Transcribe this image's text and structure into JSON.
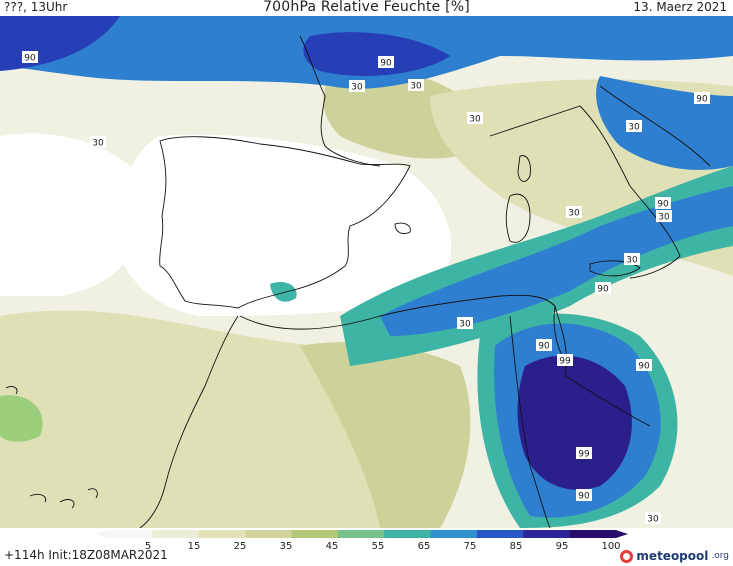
{
  "header": {
    "left": "???, 13Uhr",
    "title": "700hPa Relative Feuchte [%]",
    "right": "13. Maerz 2021"
  },
  "footer": {
    "run_info": "+114h  Init:18Z08MAR2021",
    "brand": "meteopool",
    "brand_tld": ".org"
  },
  "legend": {
    "ticks": [
      "5",
      "15",
      "25",
      "35",
      "45",
      "55",
      "65",
      "75",
      "85",
      "95",
      "100"
    ],
    "colors": [
      "#f6f6f8",
      "#ecedd6",
      "#e2e2b6",
      "#d2d39a",
      "#b3c978",
      "#77c28a",
      "#3fb2a6",
      "#2f8fcf",
      "#2957c6",
      "#2a2599",
      "#2a0c6c"
    ]
  },
  "contour_labels": [
    "90",
    "90",
    "90",
    "30",
    "30",
    "30",
    "30",
    "30",
    "30",
    "90",
    "30",
    "90",
    "30",
    "30",
    "90",
    "99",
    "90",
    "99",
    "90",
    "30"
  ],
  "map_colors": {
    "dry": "#ffffff",
    "light": "#f0f1e2",
    "tan": "#dfe0b6",
    "olive": "#cdd29a",
    "green": "#9ccf7c",
    "teal": "#3eb5a4",
    "blue": "#2e7fd0",
    "navy": "#263fb6",
    "indigo": "#2b1f8c",
    "border": "#111111"
  }
}
